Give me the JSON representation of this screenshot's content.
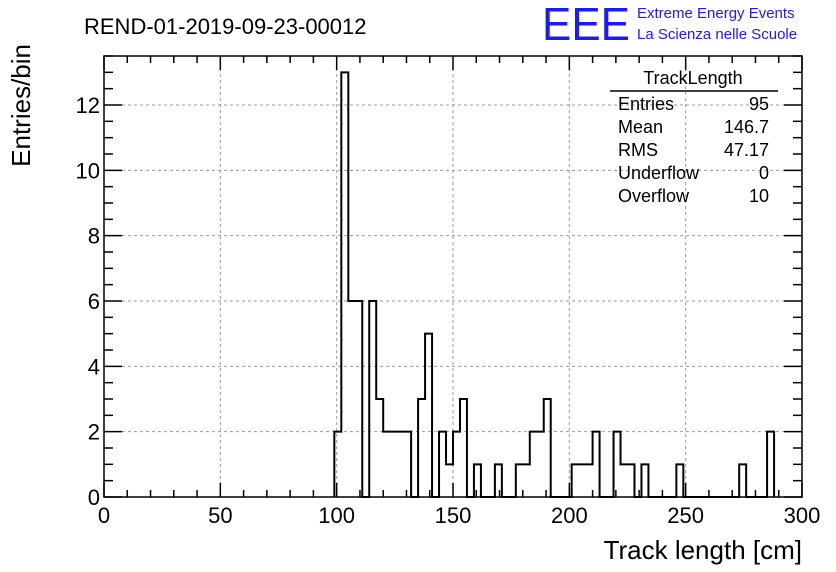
{
  "chart_data": {
    "type": "bar",
    "title": "REND-01-2019-09-23-00012",
    "xlabel": "Track length [cm]",
    "ylabel": "Entries/bin",
    "xlim": [
      0,
      300
    ],
    "ylim": [
      0,
      13.5
    ],
    "grid": true,
    "bin_width": 3,
    "xticks": [
      0,
      50,
      100,
      150,
      200,
      250,
      300
    ],
    "yticks": [
      0,
      2,
      4,
      6,
      8,
      10,
      12
    ],
    "bins": [
      {
        "x": 99,
        "y": 2
      },
      {
        "x": 102,
        "y": 13
      },
      {
        "x": 105,
        "y": 6
      },
      {
        "x": 108,
        "y": 6
      },
      {
        "x": 111,
        "y": 0
      },
      {
        "x": 114,
        "y": 6
      },
      {
        "x": 117,
        "y": 3
      },
      {
        "x": 120,
        "y": 2
      },
      {
        "x": 123,
        "y": 2
      },
      {
        "x": 126,
        "y": 2
      },
      {
        "x": 129,
        "y": 2
      },
      {
        "x": 132,
        "y": 0
      },
      {
        "x": 135,
        "y": 3
      },
      {
        "x": 138,
        "y": 5
      },
      {
        "x": 141,
        "y": 0
      },
      {
        "x": 144,
        "y": 2
      },
      {
        "x": 147,
        "y": 1
      },
      {
        "x": 150,
        "y": 2
      },
      {
        "x": 153,
        "y": 3
      },
      {
        "x": 156,
        "y": 0
      },
      {
        "x": 159,
        "y": 1
      },
      {
        "x": 162,
        "y": 0
      },
      {
        "x": 165,
        "y": 0
      },
      {
        "x": 168,
        "y": 1
      },
      {
        "x": 171,
        "y": 0
      },
      {
        "x": 174,
        "y": 0
      },
      {
        "x": 177,
        "y": 1
      },
      {
        "x": 180,
        "y": 1
      },
      {
        "x": 183,
        "y": 2
      },
      {
        "x": 186,
        "y": 2
      },
      {
        "x": 189,
        "y": 3
      },
      {
        "x": 192,
        "y": 0
      },
      {
        "x": 195,
        "y": 0
      },
      {
        "x": 198,
        "y": 0
      },
      {
        "x": 201,
        "y": 1
      },
      {
        "x": 204,
        "y": 1
      },
      {
        "x": 207,
        "y": 1
      },
      {
        "x": 210,
        "y": 2
      },
      {
        "x": 213,
        "y": 0
      },
      {
        "x": 216,
        "y": 0
      },
      {
        "x": 219,
        "y": 2
      },
      {
        "x": 222,
        "y": 1
      },
      {
        "x": 225,
        "y": 1
      },
      {
        "x": 228,
        "y": 0
      },
      {
        "x": 231,
        "y": 1
      },
      {
        "x": 234,
        "y": 0
      },
      {
        "x": 237,
        "y": 0
      },
      {
        "x": 240,
        "y": 0
      },
      {
        "x": 243,
        "y": 0
      },
      {
        "x": 246,
        "y": 1
      },
      {
        "x": 249,
        "y": 0
      },
      {
        "x": 252,
        "y": 0
      },
      {
        "x": 255,
        "y": 0
      },
      {
        "x": 258,
        "y": 0
      },
      {
        "x": 261,
        "y": 0
      },
      {
        "x": 264,
        "y": 0
      },
      {
        "x": 267,
        "y": 0
      },
      {
        "x": 270,
        "y": 0
      },
      {
        "x": 273,
        "y": 1
      },
      {
        "x": 276,
        "y": 0
      },
      {
        "x": 279,
        "y": 0
      },
      {
        "x": 282,
        "y": 0
      },
      {
        "x": 285,
        "y": 2
      }
    ],
    "stats": {
      "name": "TrackLength",
      "rows": [
        {
          "label": "Entries",
          "value": "95"
        },
        {
          "label": "Mean",
          "value": "146.7"
        },
        {
          "label": "RMS",
          "value": "47.17"
        },
        {
          "label": "Underflow",
          "value": "0"
        },
        {
          "label": "Overflow",
          "value": "10"
        }
      ],
      "position": "top-right"
    }
  },
  "logo": {
    "mark": "EEE",
    "line1": "Extreme Energy Events",
    "line2": "La Scienza nelle Scuole",
    "color": "#1a1aff"
  }
}
